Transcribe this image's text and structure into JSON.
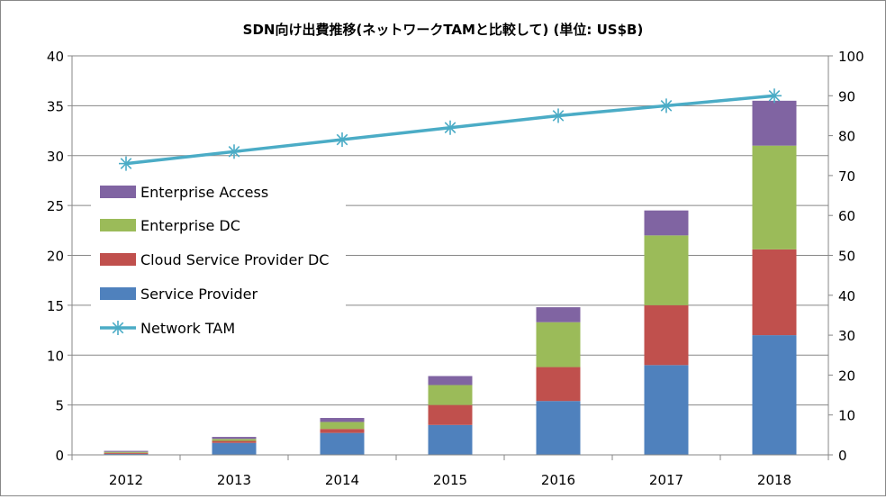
{
  "chart_data": {
    "type": "bar",
    "stacked": true,
    "title": "SDN向け出費推移(ネットワークTAMと比較して) (単位: US$B)",
    "categories": [
      "2012",
      "2013",
      "2014",
      "2015",
      "2016",
      "2017",
      "2018"
    ],
    "series": [
      {
        "name": "Service Provider",
        "axis": "left",
        "color": "#4f81bd",
        "values": [
          0.1,
          1.2,
          2.2,
          3.0,
          5.4,
          9.0,
          12.0
        ]
      },
      {
        "name": "Cloud Service Provider DC",
        "axis": "left",
        "color": "#c0504d",
        "values": [
          0.1,
          0.2,
          0.4,
          2.0,
          3.4,
          6.0,
          8.6
        ]
      },
      {
        "name": "Enterprise DC",
        "axis": "left",
        "color": "#9bbb59",
        "values": [
          0.1,
          0.2,
          0.7,
          2.0,
          4.5,
          7.0,
          10.4
        ]
      },
      {
        "name": "Enterprise Access",
        "axis": "left",
        "color": "#8064a2",
        "values": [
          0.1,
          0.2,
          0.4,
          0.9,
          1.5,
          2.5,
          4.5
        ]
      },
      {
        "name": "Network TAM",
        "type": "line",
        "axis": "right",
        "color": "#4bacc6",
        "values": [
          73,
          76,
          79,
          82,
          85,
          87.5,
          90
        ]
      }
    ],
    "y_left": {
      "ylim": [
        0,
        40
      ],
      "ticks": [
        "0",
        "5",
        "10",
        "15",
        "20",
        "25",
        "30",
        "35",
        "40"
      ]
    },
    "y_right": {
      "ylim": [
        0,
        100
      ],
      "ticks": [
        "0",
        "10",
        "20",
        "30",
        "40",
        "50",
        "60",
        "70",
        "80",
        "90",
        "100"
      ]
    },
    "legend": {
      "placement": "left",
      "order": [
        "Enterprise Access",
        "Enterprise DC",
        "Cloud Service Provider DC",
        "Service Provider",
        "Network TAM"
      ]
    },
    "grid": true,
    "xlabel": "",
    "ylabel": ""
  }
}
